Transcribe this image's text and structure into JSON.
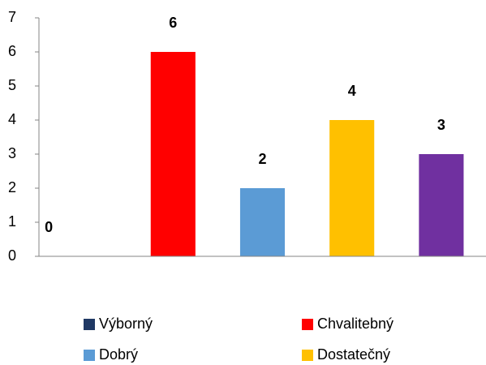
{
  "chart_data": {
    "type": "bar",
    "series": [
      {
        "name": "Výborný",
        "color": "#1f3864",
        "values": [
          0
        ]
      },
      {
        "name": "Chvalitebný",
        "color": "#ff0000",
        "values": [
          6
        ]
      },
      {
        "name": "Dobrý",
        "color": "#5b9bd5",
        "values": [
          2
        ]
      },
      {
        "name": "Dostatečný",
        "color": "#ffc000",
        "values": [
          4
        ]
      },
      {
        "name": null,
        "color": "#7030a0",
        "values": [
          3
        ]
      }
    ],
    "ylim": [
      0,
      7
    ],
    "yticks": [
      0,
      1,
      2,
      3,
      4,
      5,
      6,
      7
    ],
    "grid": false,
    "legend": "bottom"
  }
}
